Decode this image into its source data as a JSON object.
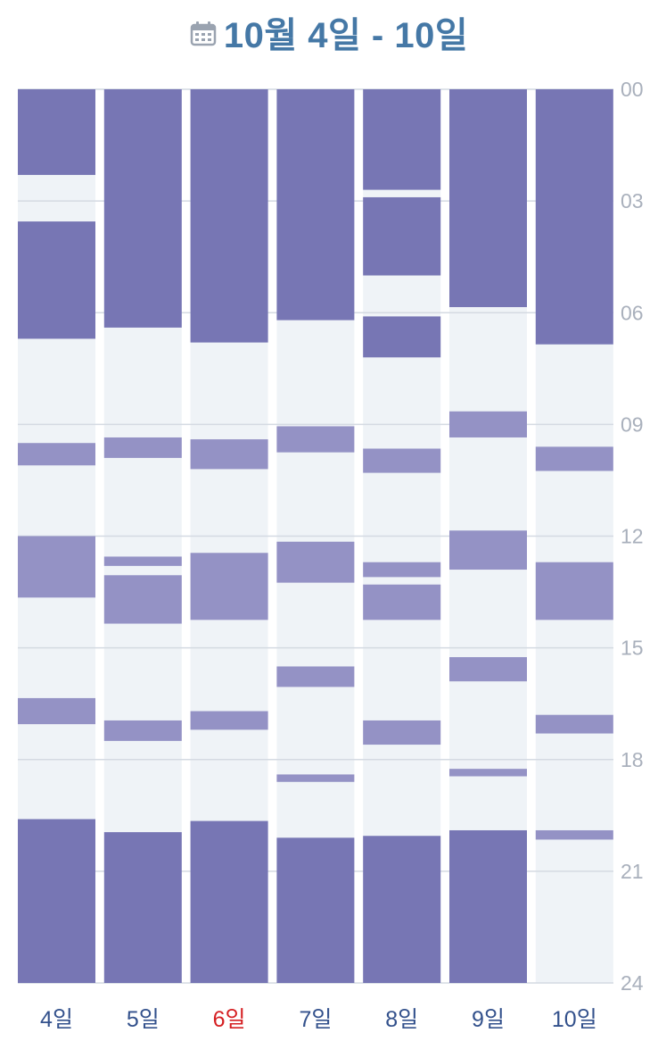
{
  "header": {
    "title": "10월 4일 - 10일",
    "icon": "calendar-icon"
  },
  "colors": {
    "sleep": "#7776b4",
    "nap": "#9492c5",
    "awake": "#eff3f7",
    "gridline": "#d4dae2",
    "hour_label": "#a9b0bc",
    "day_label": "#33518c",
    "today_label": "#d51f22",
    "title": "#4578a6"
  },
  "chart_data": {
    "type": "bar",
    "orientation": "vertical-timeline",
    "y_axis": {
      "range": [
        0,
        24
      ],
      "ticks": [
        "00",
        "03",
        "06",
        "09",
        "12",
        "15",
        "18",
        "21",
        "24"
      ],
      "position": "right"
    },
    "days": [
      {
        "label": "4일",
        "highlight": false,
        "segments": [
          {
            "start": 0,
            "end": 2.3,
            "kind": "sleep"
          },
          {
            "start": 3.55,
            "end": 6.7,
            "kind": "sleep"
          },
          {
            "start": 9.5,
            "end": 10.1,
            "kind": "nap"
          },
          {
            "start": 12.0,
            "end": 13.65,
            "kind": "nap"
          },
          {
            "start": 16.35,
            "end": 17.05,
            "kind": "nap"
          },
          {
            "start": 19.6,
            "end": 24,
            "kind": "sleep"
          }
        ]
      },
      {
        "label": "5일",
        "highlight": false,
        "segments": [
          {
            "start": 0,
            "end": 6.4,
            "kind": "sleep"
          },
          {
            "start": 9.35,
            "end": 9.9,
            "kind": "nap"
          },
          {
            "start": 12.55,
            "end": 12.8,
            "kind": "nap"
          },
          {
            "start": 13.05,
            "end": 14.35,
            "kind": "nap"
          },
          {
            "start": 16.95,
            "end": 17.5,
            "kind": "nap"
          },
          {
            "start": 19.95,
            "end": 24,
            "kind": "sleep"
          }
        ]
      },
      {
        "label": "6일",
        "highlight": true,
        "segments": [
          {
            "start": 0,
            "end": 6.8,
            "kind": "sleep"
          },
          {
            "start": 9.4,
            "end": 10.2,
            "kind": "nap"
          },
          {
            "start": 12.45,
            "end": 14.25,
            "kind": "nap"
          },
          {
            "start": 16.7,
            "end": 17.2,
            "kind": "nap"
          },
          {
            "start": 19.65,
            "end": 24,
            "kind": "sleep"
          }
        ]
      },
      {
        "label": "7일",
        "highlight": false,
        "segments": [
          {
            "start": 0,
            "end": 6.2,
            "kind": "sleep"
          },
          {
            "start": 9.05,
            "end": 9.75,
            "kind": "nap"
          },
          {
            "start": 12.15,
            "end": 13.25,
            "kind": "nap"
          },
          {
            "start": 15.5,
            "end": 16.05,
            "kind": "nap"
          },
          {
            "start": 18.4,
            "end": 18.6,
            "kind": "nap"
          },
          {
            "start": 20.1,
            "end": 24,
            "kind": "sleep"
          }
        ]
      },
      {
        "label": "8일",
        "highlight": false,
        "segments": [
          {
            "start": 0,
            "end": 2.7,
            "kind": "sleep"
          },
          {
            "start": 2.9,
            "end": 5.0,
            "kind": "sleep"
          },
          {
            "start": 6.1,
            "end": 7.2,
            "kind": "sleep"
          },
          {
            "start": 9.65,
            "end": 10.3,
            "kind": "nap"
          },
          {
            "start": 12.7,
            "end": 13.1,
            "kind": "nap"
          },
          {
            "start": 13.3,
            "end": 14.25,
            "kind": "nap"
          },
          {
            "start": 16.95,
            "end": 17.6,
            "kind": "nap"
          },
          {
            "start": 20.05,
            "end": 24,
            "kind": "sleep"
          }
        ]
      },
      {
        "label": "9일",
        "highlight": false,
        "segments": [
          {
            "start": 0,
            "end": 5.85,
            "kind": "sleep"
          },
          {
            "start": 8.65,
            "end": 9.35,
            "kind": "nap"
          },
          {
            "start": 11.85,
            "end": 12.9,
            "kind": "nap"
          },
          {
            "start": 15.25,
            "end": 15.9,
            "kind": "nap"
          },
          {
            "start": 18.25,
            "end": 18.45,
            "kind": "nap"
          },
          {
            "start": 19.9,
            "end": 24,
            "kind": "sleep"
          }
        ]
      },
      {
        "label": "10일",
        "highlight": false,
        "segments": [
          {
            "start": 0,
            "end": 6.85,
            "kind": "sleep"
          },
          {
            "start": 9.6,
            "end": 10.25,
            "kind": "nap"
          },
          {
            "start": 12.7,
            "end": 14.25,
            "kind": "nap"
          },
          {
            "start": 16.8,
            "end": 17.3,
            "kind": "nap"
          },
          {
            "start": 19.9,
            "end": 20.15,
            "kind": "nap"
          }
        ]
      }
    ]
  }
}
